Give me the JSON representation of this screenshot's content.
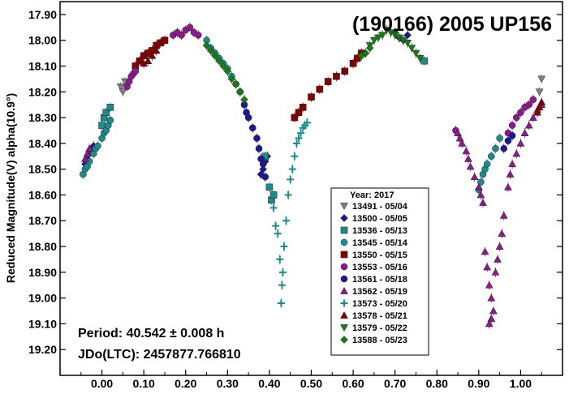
{
  "chart_data": {
    "type": "scatter",
    "title": "(190166) 2005 UP156",
    "ylabel": "Reduced Magnitude(V) alpha(10.9°)",
    "xlabel": "",
    "xlim": [
      -0.1,
      1.1
    ],
    "ylim": [
      19.3,
      17.85
    ],
    "y_inverted": true,
    "x_ticks": [
      "0.00",
      "0.10",
      "0.20",
      "0.30",
      "0.40",
      "0.50",
      "0.60",
      "0.70",
      "0.80",
      "0.90",
      "1.00"
    ],
    "y_ticks": [
      "17.90",
      "18.00",
      "18.10",
      "18.20",
      "18.30",
      "18.40",
      "18.50",
      "18.60",
      "18.70",
      "18.80",
      "18.90",
      "19.00",
      "19.10",
      "19.20"
    ],
    "annotations": [
      "Period: 40.542 ± 0.008 h",
      "JDo(LTC): 2457877.766810"
    ],
    "legend_title": "Year: 2017",
    "legend_placement": "bottom-right",
    "grid": false,
    "series": [
      {
        "name": "13491 - 05/04",
        "marker": "triangle-down",
        "color": "#808080",
        "points": [
          [
            0.045,
            18.18
          ],
          [
            0.05,
            18.2
          ],
          [
            0.055,
            18.16
          ],
          [
            1.05,
            18.15
          ],
          [
            1.045,
            18.2
          ]
        ]
      },
      {
        "name": "13500 - 05/05",
        "marker": "diamond",
        "color": "#1a1a8c",
        "points": [
          [
            -0.04,
            18.48
          ],
          [
            -0.035,
            18.46
          ],
          [
            -0.03,
            18.44
          ],
          [
            -0.025,
            18.43
          ],
          [
            -0.02,
            18.41
          ],
          [
            0.38,
            18.52
          ],
          [
            0.385,
            18.5
          ],
          [
            0.39,
            18.47
          ],
          [
            0.395,
            18.45
          ],
          [
            0.7,
            17.97
          ],
          [
            0.71,
            17.99
          ],
          [
            0.72,
            18.0
          ],
          [
            0.73,
            17.98
          ]
        ]
      },
      {
        "name": "13536 - 05/13",
        "marker": "square",
        "color": "#1f8a8a",
        "points": [
          [
            0.0,
            18.33
          ],
          [
            0.005,
            18.3
          ],
          [
            0.01,
            18.28
          ],
          [
            0.02,
            18.26
          ],
          [
            0.39,
            18.45
          ],
          [
            0.4,
            18.57
          ],
          [
            0.405,
            18.62
          ],
          [
            0.41,
            18.6
          ],
          [
            0.77,
            18.08
          ]
        ]
      },
      {
        "name": "13545 - 05/14",
        "marker": "circle",
        "color": "#1f8a8a",
        "points": [
          [
            -0.045,
            18.52
          ],
          [
            -0.04,
            18.5
          ],
          [
            -0.035,
            18.49
          ],
          [
            -0.03,
            18.47
          ],
          [
            -0.02,
            18.44
          ],
          [
            -0.015,
            18.42
          ],
          [
            -0.01,
            18.41
          ],
          [
            0.0,
            18.38
          ],
          [
            0.005,
            18.36
          ],
          [
            0.01,
            18.35
          ],
          [
            0.015,
            18.33
          ],
          [
            0.02,
            18.31
          ],
          [
            0.25,
            18.0
          ],
          [
            0.26,
            18.03
          ],
          [
            0.27,
            18.05
          ],
          [
            0.28,
            18.07
          ],
          [
            0.29,
            18.09
          ],
          [
            0.3,
            18.11
          ],
          [
            0.31,
            18.14
          ],
          [
            0.32,
            18.17
          ],
          [
            0.33,
            18.2
          ],
          [
            0.9,
            18.58
          ],
          [
            0.905,
            18.55
          ],
          [
            0.91,
            18.52
          ],
          [
            0.915,
            18.5
          ],
          [
            0.92,
            18.48
          ],
          [
            0.93,
            18.45
          ],
          [
            0.94,
            18.42
          ],
          [
            0.95,
            18.38
          ]
        ]
      },
      {
        "name": "13550 - 05/15",
        "marker": "square",
        "color": "#800000",
        "points": [
          [
            0.08,
            18.1
          ],
          [
            0.09,
            18.08
          ],
          [
            0.1,
            18.06
          ],
          [
            0.11,
            18.05
          ],
          [
            0.12,
            18.04
          ],
          [
            0.13,
            18.02
          ],
          [
            0.14,
            18.01
          ],
          [
            0.15,
            18.0
          ],
          [
            0.46,
            18.3
          ],
          [
            0.47,
            18.28
          ],
          [
            0.48,
            18.26
          ],
          [
            0.5,
            18.22
          ],
          [
            0.52,
            18.19
          ],
          [
            0.54,
            18.16
          ],
          [
            0.56,
            18.14
          ],
          [
            0.58,
            18.12
          ],
          [
            0.6,
            18.09
          ],
          [
            0.61,
            18.07
          ],
          [
            0.62,
            18.05
          ]
        ]
      },
      {
        "name": "13553 - 05/16",
        "marker": "circle",
        "color": "#8b1a8b",
        "points": [
          [
            0.06,
            18.18
          ],
          [
            0.065,
            18.16
          ],
          [
            0.07,
            18.14
          ],
          [
            0.075,
            18.13
          ],
          [
            0.08,
            18.12
          ],
          [
            0.17,
            17.98
          ],
          [
            0.18,
            17.97
          ],
          [
            0.19,
            17.98
          ],
          [
            0.2,
            17.96
          ],
          [
            0.21,
            17.95
          ],
          [
            0.22,
            17.97
          ],
          [
            0.23,
            17.98
          ],
          [
            0.845,
            18.35
          ],
          [
            0.97,
            18.36
          ],
          [
            0.98,
            18.33
          ],
          [
            0.99,
            18.3
          ],
          [
            1.0,
            18.28
          ],
          [
            1.01,
            18.26
          ],
          [
            1.02,
            18.25
          ],
          [
            1.03,
            18.23
          ]
        ]
      },
      {
        "name": "13561 - 05/18",
        "marker": "circle",
        "color": "#1a1a8c",
        "points": [
          [
            0.34,
            18.25
          ],
          [
            0.345,
            18.28
          ],
          [
            0.35,
            18.3
          ],
          [
            0.36,
            18.34
          ],
          [
            0.37,
            18.38
          ],
          [
            0.375,
            18.42
          ],
          [
            0.38,
            18.46
          ],
          [
            0.385,
            18.48
          ],
          [
            0.39,
            18.53
          ],
          [
            0.96,
            18.42
          ],
          [
            0.97,
            18.39
          ],
          [
            0.98,
            18.37
          ]
        ]
      },
      {
        "name": "13562 - 05/19",
        "marker": "triangle-up",
        "color": "#8b1a8b",
        "points": [
          [
            -0.04,
            18.46
          ],
          [
            -0.035,
            18.44
          ],
          [
            -0.03,
            18.42
          ],
          [
            0.85,
            18.36
          ],
          [
            0.855,
            18.38
          ],
          [
            0.86,
            18.4
          ],
          [
            0.87,
            18.43
          ],
          [
            0.875,
            18.46
          ],
          [
            0.88,
            18.49
          ],
          [
            0.89,
            18.53
          ],
          [
            0.9,
            18.57
          ],
          [
            0.905,
            18.6
          ],
          [
            0.91,
            18.63
          ],
          [
            0.915,
            18.82
          ],
          [
            0.92,
            18.88
          ],
          [
            0.925,
            18.95
          ],
          [
            0.93,
            19.0
          ],
          [
            0.935,
            19.05
          ],
          [
            0.93,
            19.08
          ],
          [
            0.925,
            19.1
          ],
          [
            0.94,
            18.9
          ],
          [
            0.945,
            18.85
          ],
          [
            0.95,
            18.8
          ],
          [
            0.955,
            18.75
          ],
          [
            0.96,
            18.68
          ],
          [
            0.97,
            18.57
          ],
          [
            0.975,
            18.52
          ],
          [
            0.98,
            18.48
          ],
          [
            0.99,
            18.44
          ],
          [
            1.0,
            18.4
          ],
          [
            1.01,
            18.36
          ],
          [
            1.02,
            18.33
          ],
          [
            1.03,
            18.3
          ],
          [
            1.04,
            18.27
          ],
          [
            1.05,
            18.25
          ]
        ]
      },
      {
        "name": "13573 - 05/20",
        "marker": "plus",
        "color": "#1f8a8a",
        "points": [
          [
            0.41,
            18.65
          ],
          [
            0.415,
            18.72
          ],
          [
            0.42,
            18.75
          ],
          [
            0.425,
            18.85
          ],
          [
            0.43,
            18.95
          ],
          [
            0.428,
            19.02
          ],
          [
            0.432,
            18.9
          ],
          [
            0.435,
            18.8
          ],
          [
            0.44,
            18.7
          ],
          [
            0.445,
            18.6
          ],
          [
            0.45,
            18.54
          ],
          [
            0.455,
            18.5
          ],
          [
            0.46,
            18.45
          ],
          [
            0.465,
            18.4
          ],
          [
            0.47,
            18.38
          ],
          [
            0.475,
            18.36
          ],
          [
            0.48,
            18.34
          ],
          [
            0.485,
            18.33
          ],
          [
            0.49,
            18.32
          ]
        ]
      },
      {
        "name": "13578 - 05/21",
        "marker": "triangle-up",
        "color": "#800000",
        "points": [
          [
            0.1,
            18.09
          ],
          [
            0.11,
            18.08
          ],
          [
            0.12,
            18.06
          ],
          [
            0.13,
            18.04
          ],
          [
            1.04,
            18.28
          ],
          [
            1.045,
            18.26
          ],
          [
            1.05,
            18.24
          ]
        ]
      },
      {
        "name": "13579 - 05/22",
        "marker": "triangle-down",
        "color": "#1a7a1a",
        "points": [
          [
            0.64,
            18.02
          ],
          [
            0.65,
            18.0
          ],
          [
            0.66,
            17.99
          ],
          [
            0.67,
            17.98
          ],
          [
            0.68,
            17.96
          ],
          [
            0.69,
            17.97
          ],
          [
            0.7,
            17.98
          ],
          [
            0.71,
            17.99
          ],
          [
            0.72,
            18.0
          ],
          [
            0.73,
            18.01
          ],
          [
            0.74,
            18.03
          ],
          [
            0.75,
            18.05
          ],
          [
            0.76,
            18.07
          ]
        ]
      },
      {
        "name": "13588 - 05/23",
        "marker": "diamond",
        "color": "#1a7a1a",
        "points": [
          [
            0.25,
            18.02
          ],
          [
            0.26,
            18.04
          ],
          [
            0.27,
            18.06
          ],
          [
            0.28,
            18.08
          ],
          [
            0.29,
            18.1
          ],
          [
            0.3,
            18.12
          ],
          [
            0.31,
            18.15
          ],
          [
            0.32,
            18.17
          ],
          [
            0.33,
            18.2
          ],
          [
            0.34,
            18.23
          ],
          [
            0.62,
            18.06
          ],
          [
            0.63,
            18.05
          ],
          [
            0.64,
            18.03
          ]
        ]
      }
    ]
  }
}
